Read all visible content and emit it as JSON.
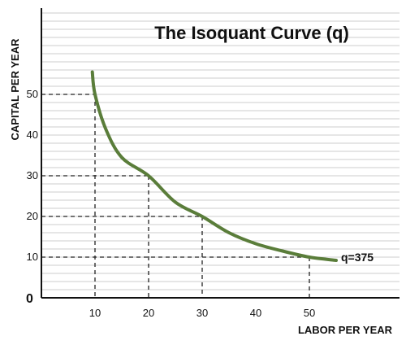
{
  "chart_data": {
    "type": "line",
    "title": "The Isoquant Curve (q)",
    "xlabel": "LABOR PER YEAR",
    "ylabel": "CAPITAL PER YEAR",
    "origin_label": "0",
    "xlim": [
      0,
      63
    ],
    "ylim": [
      0,
      70
    ],
    "x_ticks": [
      "10",
      "20",
      "30",
      "40",
      "50"
    ],
    "y_ticks": [
      "10",
      "20",
      "30",
      "40",
      "50"
    ],
    "grid": "horizontal",
    "series": [
      {
        "name": "q=375",
        "color": "#5a7d3a",
        "x": [
          9.5,
          10,
          12,
          15,
          20,
          25,
          30,
          35,
          40,
          45,
          50,
          55
        ],
        "y": [
          55.5,
          50,
          41.5,
          34.5,
          30,
          23.5,
          20,
          16,
          13.3,
          11.5,
          10,
          9.2
        ]
      }
    ],
    "guide_points": [
      {
        "x": 10,
        "y": 50
      },
      {
        "x": 20,
        "y": 30
      },
      {
        "x": 30,
        "y": 20
      },
      {
        "x": 50,
        "y": 10
      }
    ],
    "gridline_color": "#cccccc"
  }
}
